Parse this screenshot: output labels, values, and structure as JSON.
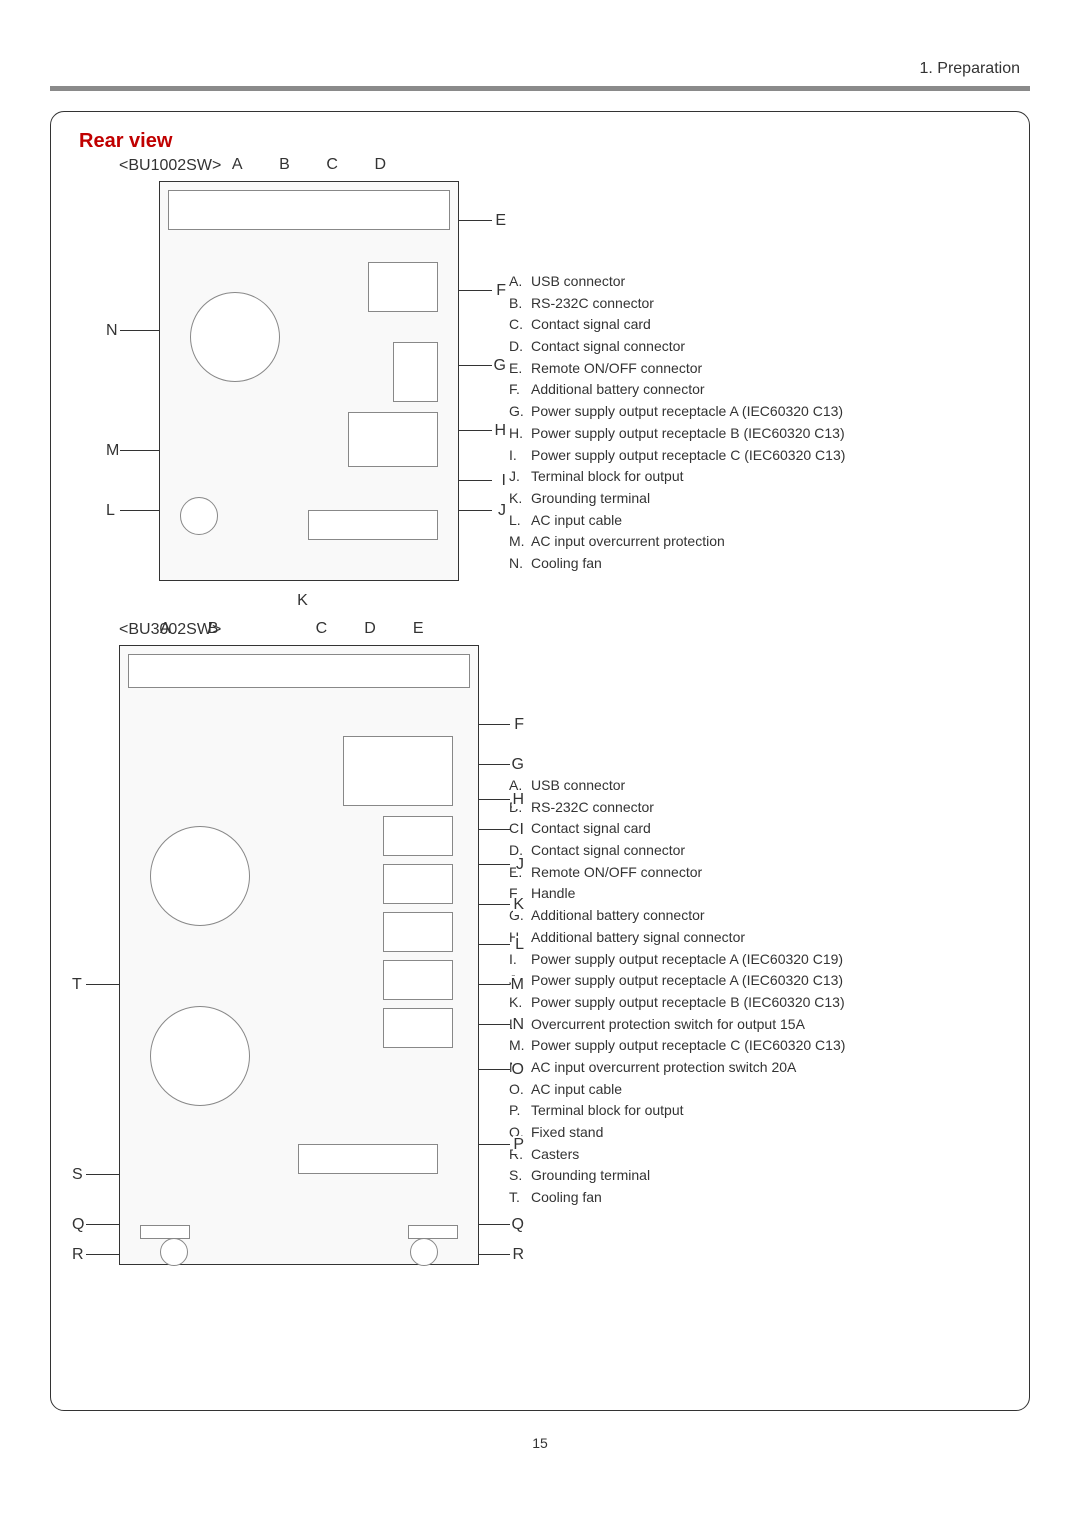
{
  "chapter": "1. Preparation",
  "section_title": "Rear view",
  "page_number": "15",
  "colors": {
    "title": "#c00000",
    "divider": "#8a8a8a",
    "text": "#333333",
    "border": "#333333"
  },
  "fonts": {
    "body_family": "Arial, Helvetica, sans-serif",
    "title_size_pt": 15,
    "body_size_pt": 10.5,
    "legend_size_pt": 10.5
  },
  "model1": {
    "label": "<BU1002SW>",
    "top_letters": [
      "A",
      "B",
      "C",
      "D"
    ],
    "right_letters": [
      "E",
      "F",
      "G",
      "H",
      "I",
      "J"
    ],
    "left_letters": [
      "N",
      "M",
      "L"
    ],
    "bottom_letter": "K",
    "legend": [
      {
        "l": "A.",
        "t": "USB connector"
      },
      {
        "l": "B.",
        "t": "RS-232C connector"
      },
      {
        "l": "C.",
        "t": "Contact signal card"
      },
      {
        "l": "D.",
        "t": "Contact signal connector"
      },
      {
        "l": "E.",
        "t": "Remote ON/OFF connector"
      },
      {
        "l": "F.",
        "t": "Additional battery connector"
      },
      {
        "l": "G.",
        "t": "Power supply output receptacle A (IEC60320 C13)"
      },
      {
        "l": "H.",
        "t": "Power supply output receptacle B (IEC60320 C13)"
      },
      {
        "l": "I.",
        "t": "Power supply output receptacle C (IEC60320 C13)"
      },
      {
        "l": "J.",
        "t": "Terminal block for output"
      },
      {
        "l": "K.",
        "t": "Grounding terminal"
      },
      {
        "l": "L.",
        "t": "AC input cable"
      },
      {
        "l": "M.",
        "t": "AC input overcurrent protection"
      },
      {
        "l": "N.",
        "t": "Cooling fan"
      }
    ]
  },
  "model2": {
    "label": "<BU3002SW>",
    "top_letters": [
      "A",
      "B",
      "C",
      "D",
      "E"
    ],
    "right_letters": [
      "F",
      "G",
      "H",
      "I",
      "J",
      "K",
      "L",
      "M",
      "N",
      "O",
      "P",
      "Q",
      "R"
    ],
    "left_letters": [
      "T",
      "S",
      "Q",
      "R"
    ],
    "legend": [
      {
        "l": "A.",
        "t": "USB connector"
      },
      {
        "l": "B.",
        "t": "RS-232C connector"
      },
      {
        "l": "C.",
        "t": "Contact signal card"
      },
      {
        "l": "D.",
        "t": "Contact signal connector"
      },
      {
        "l": "E.",
        "t": "Remote ON/OFF connector"
      },
      {
        "l": "F.",
        "t": "Handle"
      },
      {
        "l": "G.",
        "t": "Additional battery connector"
      },
      {
        "l": "H.",
        "t": "Additional battery signal connector"
      },
      {
        "l": "I.",
        "t": "Power supply output receptacle A (IEC60320 C19)"
      },
      {
        "l": "J.",
        "t": "Power supply output receptacle A (IEC60320 C13)"
      },
      {
        "l": "K.",
        "t": "Power supply output receptacle B (IEC60320 C13)"
      },
      {
        "l": "L.",
        "t": "Overcurrent protection switch for output 15A"
      },
      {
        "l": "M.",
        "t": "Power supply output receptacle C (IEC60320 C13)"
      },
      {
        "l": "N.",
        "t": "AC input overcurrent protection switch 20A"
      },
      {
        "l": "O.",
        "t": "AC input cable"
      },
      {
        "l": "P.",
        "t": "Terminal block for output"
      },
      {
        "l": "Q.",
        "t": "Fixed stand"
      },
      {
        "l": "R.",
        "t": "Casters"
      },
      {
        "l": "S.",
        "t": "Grounding terminal"
      },
      {
        "l": "T.",
        "t": "Cooling fan"
      }
    ]
  }
}
